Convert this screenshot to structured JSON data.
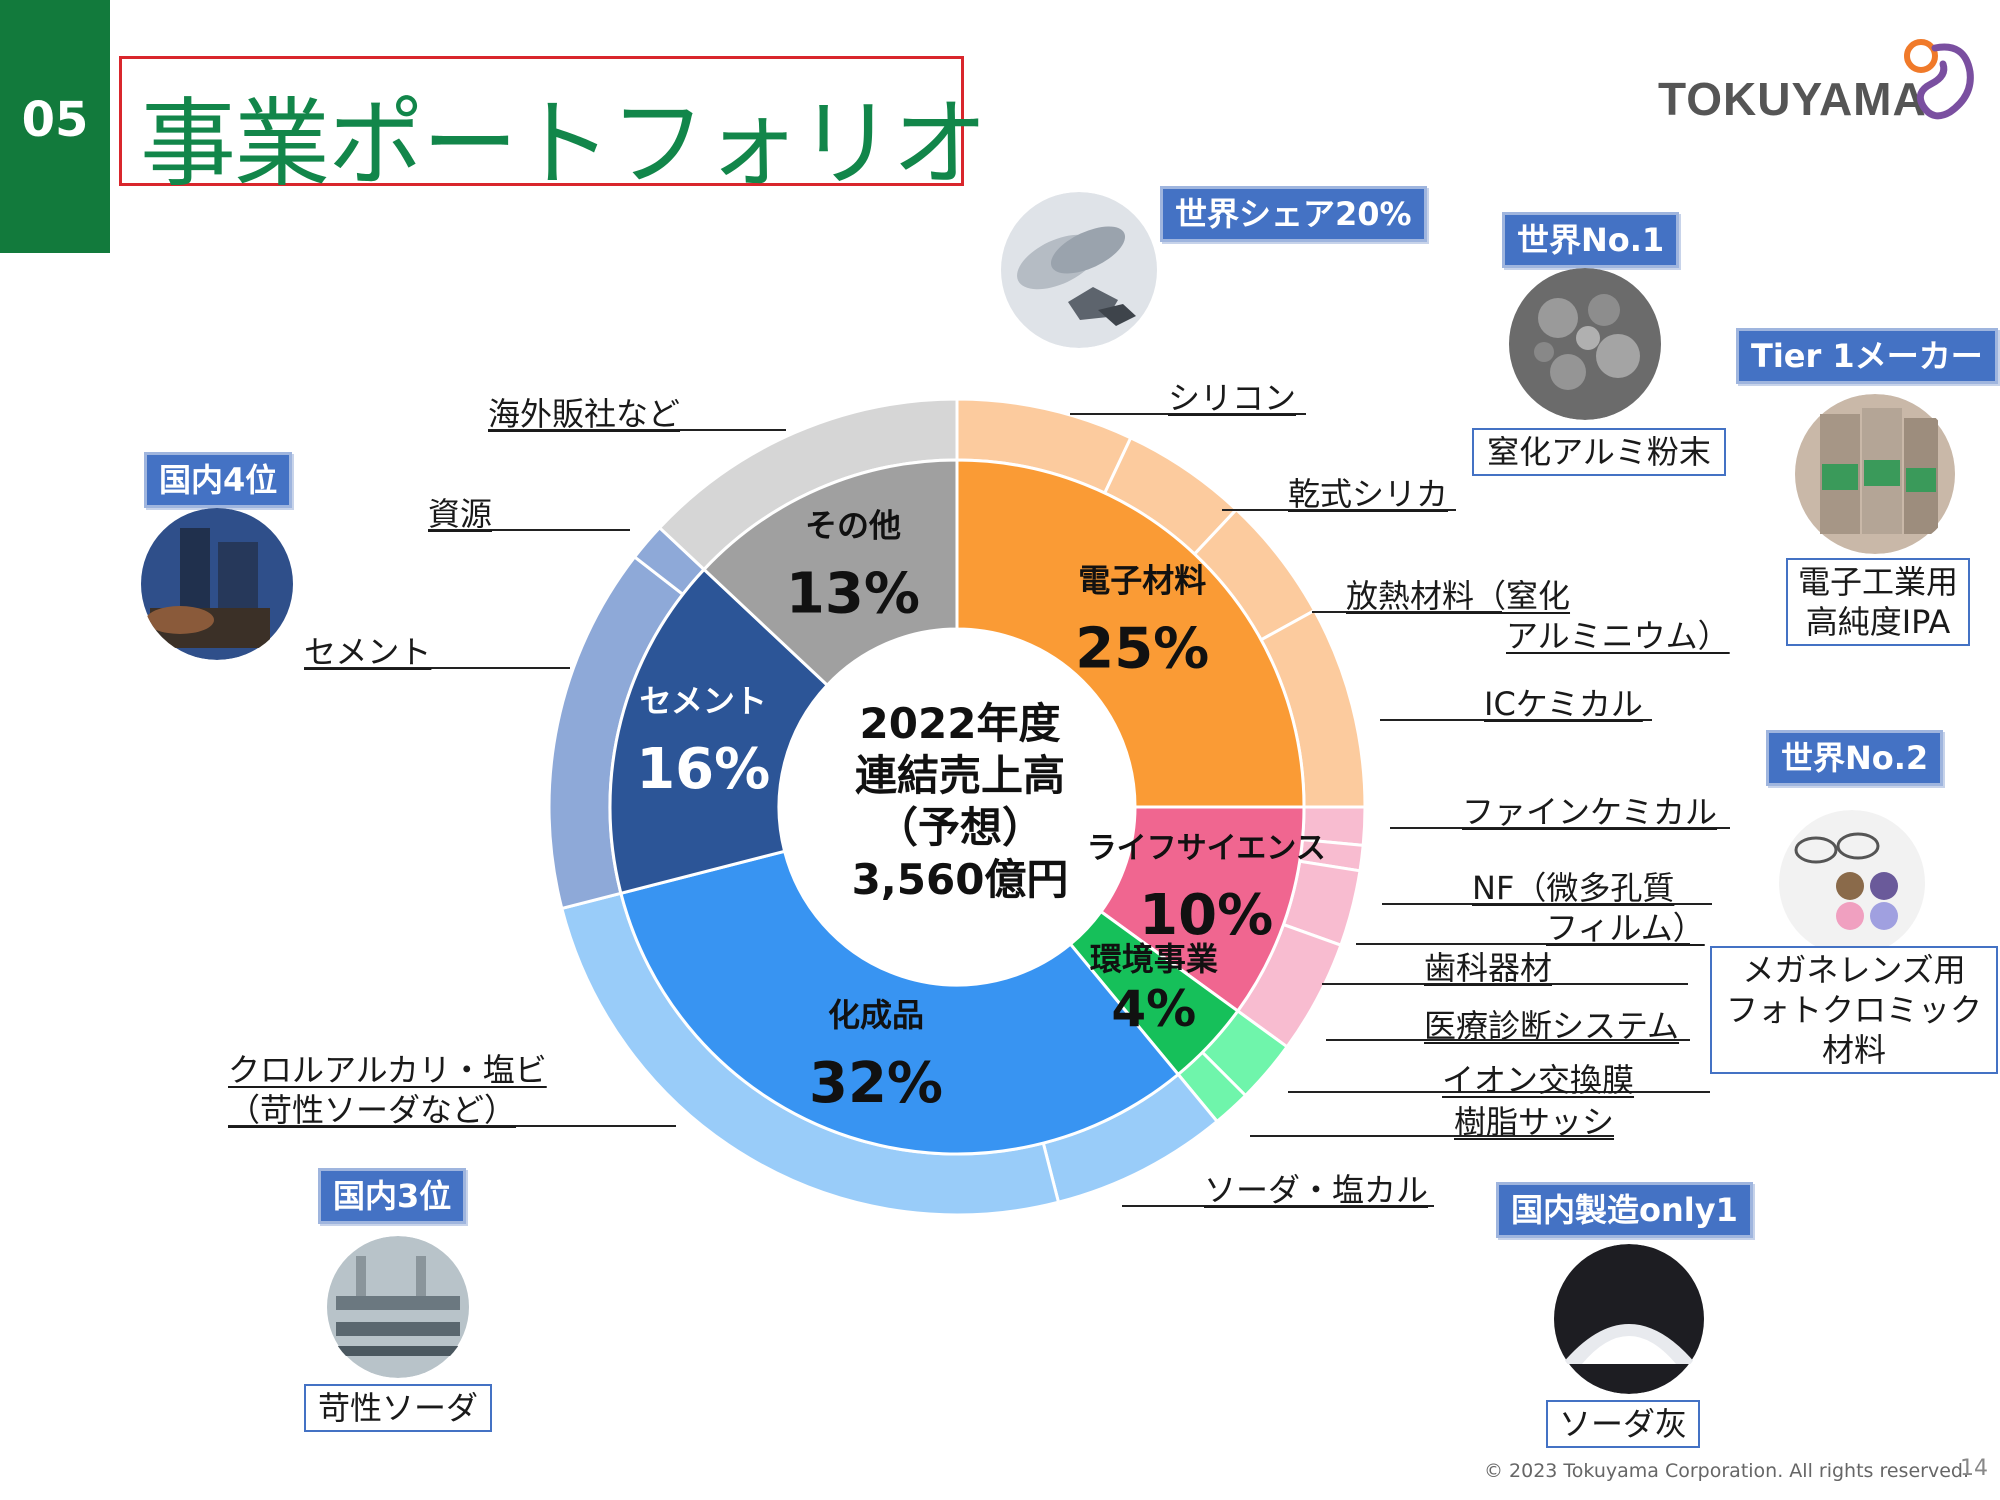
{
  "header": {
    "section_number": "05",
    "title": "事業ポートフォリオ",
    "logo_text": "TOKUYAMA"
  },
  "center_text": [
    "2022年度",
    "連結売上高",
    "（予想）",
    "3,560億円"
  ],
  "chart_data": {
    "type": "pie",
    "subtype": "two-level donut",
    "inner": [
      {
        "name": "電子材料",
        "value": 25,
        "label": "25%",
        "color": "#fa9b35"
      },
      {
        "name": "ライフサイエンス",
        "value": 10,
        "label": "10%",
        "color": "#f06690"
      },
      {
        "name": "環境事業",
        "value": 4,
        "label": "4%",
        "color": "#16c05a"
      },
      {
        "name": "化成品",
        "value": 32,
        "label": "32%",
        "color": "#3894f2"
      },
      {
        "name": "セメント",
        "value": 16,
        "label": "16%",
        "color": "#2c5597"
      },
      {
        "name": "その他",
        "value": 13,
        "label": "13%",
        "color": "#a0a0a0"
      }
    ],
    "outer": [
      {
        "name": "シリコン",
        "parent": "電子材料",
        "value": 7,
        "color": "#fccb9e"
      },
      {
        "name": "乾式シリカ",
        "parent": "電子材料",
        "value": 5,
        "color": "#fccb9e"
      },
      {
        "name": "放熱材料（窒化アルミニウム）",
        "parent": "電子材料",
        "value": 5,
        "color": "#fccb9e"
      },
      {
        "name": "ICケミカル",
        "parent": "電子材料",
        "value": 8,
        "color": "#fccb9e"
      },
      {
        "name": "ファインケミカル",
        "parent": "ライフサイエンス",
        "value": 1.5,
        "color": "#f8bcd0"
      },
      {
        "name": "NF（微多孔質フィルム）",
        "parent": "ライフサイエンス",
        "value": 1,
        "color": "#f8bcd0"
      },
      {
        "name": "歯科器材",
        "parent": "ライフサイエンス",
        "value": 3,
        "color": "#f8bcd0"
      },
      {
        "name": "医療診断システム",
        "parent": "ライフサイエンス",
        "value": 4.5,
        "color": "#f8bcd0"
      },
      {
        "name": "イオン交換膜",
        "parent": "環境事業",
        "value": 2.5,
        "color": "#6ff5ab"
      },
      {
        "name": "樹脂サッシ",
        "parent": "環境事業",
        "value": 1.5,
        "color": "#6ff5ab"
      },
      {
        "name": "ソーダ・塩カル",
        "parent": "化成品",
        "value": 7,
        "color": "#99ccf9"
      },
      {
        "name": "クロルアルカリ・塩ビ（苛性ソーダなど）",
        "parent": "化成品",
        "value": 25,
        "color": "#99ccf9"
      },
      {
        "name": "セメント",
        "parent": "セメント",
        "value": 14.5,
        "color": "#8ea9d8"
      },
      {
        "name": "資源",
        "parent": "セメント",
        "value": 1.5,
        "color": "#8ea9d8"
      },
      {
        "name": "海外販社など",
        "parent": "その他",
        "value": 13,
        "color": "#d6d6d6"
      }
    ]
  },
  "callouts": {
    "silicon": "シリコン",
    "dry_silica": "乾式シリカ",
    "heat_1": "放熱材料（窒化",
    "heat_2": "アルミニウム）",
    "ic_chem": "ICケミカル",
    "fine_chem": "ファインケミカル",
    "nf_1": "NF（微多孔質",
    "nf_2": "フィルム）",
    "dental": "歯科器材",
    "medical": "医療診断システム",
    "ion": "イオン交換膜",
    "sash": "樹脂サッシ",
    "soda": "ソーダ・塩カル",
    "chlor_1": "クロルアルカリ・塩ビ",
    "chlor_2": "（苛性ソーダなど）",
    "cement": "セメント",
    "resources": "資源",
    "overseas": "海外販社など"
  },
  "badges": {
    "world_share": "世界シェア20%",
    "world_no1": "世界No.1",
    "tier1": "Tier 1メーカー",
    "domestic4": "国内4位",
    "world_no2": "世界No.2",
    "domestic3": "国内3位",
    "domestic_only": "国内製造only1"
  },
  "captions": {
    "aln_powder": "窒化アルミ粉末",
    "ipa_1": "電子工業用",
    "ipa_2": "高純度IPA",
    "lens_1": "メガネレンズ用",
    "lens_2": "フォトクロミック",
    "lens_3": "材料",
    "caustic": "苛性ソーダ",
    "soda_ash": "ソーダ灰"
  },
  "footer": {
    "copyright": "© 2023 Tokuyama Corporation. All rights reserved.",
    "page": "14"
  }
}
